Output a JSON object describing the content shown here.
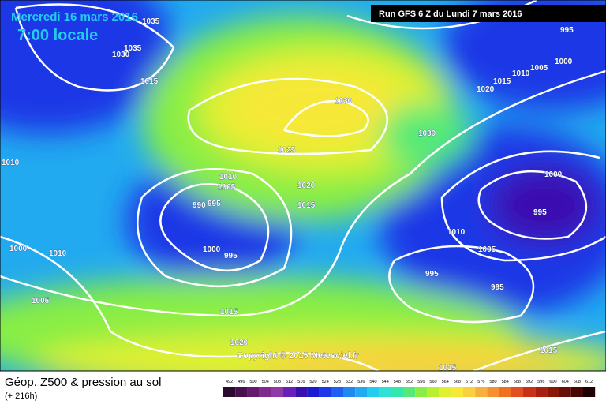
{
  "header": {
    "date": "Mercredi 16 mars 2016",
    "time": "7:00 locale",
    "run": "Run GFS 6 Z du Lundi 7 mars 2016"
  },
  "copyright": "Copyright © 2015 Meteociel.fr",
  "footer": {
    "title": "Géop. Z500 & pression au sol",
    "lead": "(+ 216h)"
  },
  "legend": {
    "values": [
      492,
      496,
      500,
      504,
      508,
      512,
      516,
      520,
      524,
      528,
      532,
      536,
      540,
      544,
      548,
      552,
      556,
      560,
      564,
      568,
      572,
      576,
      580,
      584,
      588,
      592,
      596,
      600,
      604,
      608,
      612
    ],
    "colors": [
      "#2a0a2e",
      "#4a0f4f",
      "#661a6e",
      "#7e2a8e",
      "#8f3aa8",
      "#6a1fb8",
      "#3a0fb0",
      "#1a1ad0",
      "#1d38e6",
      "#2060f0",
      "#2188f0",
      "#22aaf0",
      "#22ccee",
      "#2ee0d6",
      "#33e6aa",
      "#55ea77",
      "#88ee44",
      "#b8f030",
      "#e0f030",
      "#f7e838",
      "#f8d040",
      "#f7b040",
      "#f49030",
      "#f07020",
      "#e05020",
      "#c83018",
      "#a82010",
      "#881808",
      "#681008",
      "#480804",
      "#200000"
    ]
  },
  "isobars": [
    "1035",
    "1030",
    "1035",
    "1015",
    "1030",
    "1025",
    "1010",
    "1010",
    "1005",
    "990",
    "995",
    "1020",
    "1015",
    "1000",
    "1010",
    "1000",
    "995",
    "1005",
    "1015",
    "1020",
    "995",
    "1000",
    "1005",
    "1010",
    "1015",
    "1020",
    "1030",
    "1000",
    "995",
    "1010",
    "1005",
    "995",
    "995",
    "1015",
    "1015"
  ]
}
